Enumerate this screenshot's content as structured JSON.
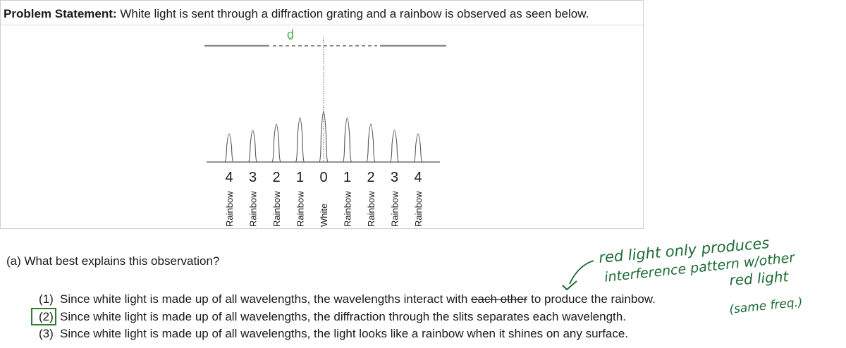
{
  "problem": {
    "label": "Problem Statement:",
    "text": "White light is sent through a diffraction grating and a rainbow is observed as seen below."
  },
  "diagram": {
    "slit_spacing_label": "d",
    "orders": [
      {
        "number": "4",
        "label": "Rainbow"
      },
      {
        "number": "3",
        "label": "Rainbow"
      },
      {
        "number": "2",
        "label": "Rainbow"
      },
      {
        "number": "1",
        "label": "Rainbow"
      },
      {
        "number": "0",
        "label": "White"
      },
      {
        "number": "1",
        "label": "Rainbow"
      },
      {
        "number": "2",
        "label": "Rainbow"
      },
      {
        "number": "3",
        "label": "Rainbow"
      },
      {
        "number": "4",
        "label": "Rainbow"
      }
    ]
  },
  "question": {
    "text": "(a)  What best explains this observation?"
  },
  "choices": [
    {
      "num": "(1)",
      "before": "Since white light is made up of all wavelengths, the wavelengths interact with ",
      "struck": "each other",
      "after": " to produce the rainbow."
    },
    {
      "num": "(2)",
      "text": "Since white light is made up of all wavelengths, the diffraction through the slits separates each wavelength."
    },
    {
      "num": "(3)",
      "text": "Since white light is made up of all wavelengths, the light looks like a rainbow when it shines on any surface."
    }
  ],
  "annotation": {
    "line1": "red light only produces",
    "line2": "interference pattern w/other",
    "line3": "red light",
    "line4": "(same freq.)"
  },
  "colors": {
    "annotation_green": "#1f6b35",
    "label_green": "#4caf50",
    "answer_box_green": "#2e7d32"
  }
}
